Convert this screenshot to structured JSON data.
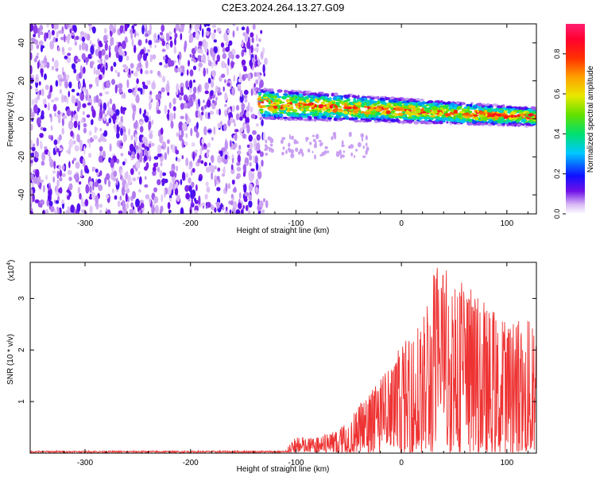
{
  "title": "C2E3.2024.264.13.27.G09",
  "chart_data": [
    {
      "type": "heatmap",
      "xlabel": "Height of straight line (km)",
      "ylabel": "Frequency (Hz)",
      "xlim": [
        -352,
        128
      ],
      "ylim": [
        -50,
        50
      ],
      "x_ticks": [
        -300,
        -200,
        -100,
        0,
        100
      ],
      "y_ticks": [
        -40,
        -20,
        0,
        20,
        40
      ],
      "colorbar": {
        "label": "Normalized spectral amplitude",
        "range": [
          0,
          0.95
        ],
        "ticks": [
          0.0,
          0.2,
          0.4,
          0.6,
          0.8
        ]
      },
      "regions": [
        {
          "x_range": [
            -352,
            -135
          ],
          "freq_range": [
            -50,
            50
          ],
          "amplitude": "low (0.0-0.2), scattered noise"
        },
        {
          "x_range": [
            -135,
            128
          ],
          "center_freq_start": 8,
          "center_freq_end": 1,
          "band_halfwidth_start": 5,
          "band_halfwidth_end": 3,
          "peak_amplitude": 0.85
        }
      ]
    },
    {
      "type": "line",
      "xlabel": "Height of straight line (km)",
      "ylabel": "SNR (10 * v/v)",
      "y_multiplier": "(x10",
      "y_multiplier_exp": "4",
      "y_multiplier_close": ")",
      "xlim": [
        -352,
        128
      ],
      "ylim": [
        0,
        3.7
      ],
      "x_ticks": [
        -300,
        -200,
        -100,
        0,
        100
      ],
      "y_ticks": [
        1,
        2,
        3
      ],
      "color": "#ee3333",
      "envelope": {
        "x": [
          -352,
          -200,
          -110,
          -100,
          -80,
          -60,
          -40,
          -20,
          0,
          20,
          30,
          50,
          70,
          90,
          110,
          128
        ],
        "max": [
          0.05,
          0.05,
          0.06,
          0.32,
          0.3,
          0.45,
          0.95,
          1.45,
          2.1,
          2.6,
          3.65,
          3.55,
          3.1,
          2.7,
          2.6,
          2.6
        ]
      }
    }
  ]
}
